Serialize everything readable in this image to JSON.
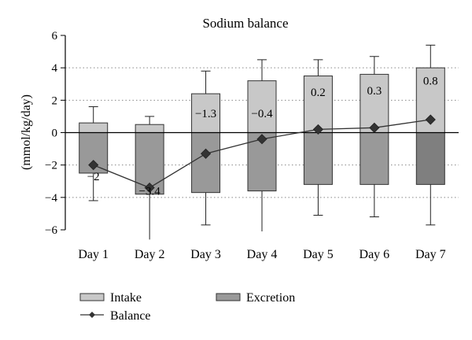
{
  "chart_data": {
    "type": "bar",
    "title": "Sodium balance",
    "xlabel": "",
    "ylabel": "(mmol/kg/day)",
    "ylim": [
      -6,
      6
    ],
    "yticks": [
      -6,
      -4,
      -2,
      0,
      2,
      4,
      6
    ],
    "grid": "dotted horizontal",
    "legend_position": "bottom",
    "categories": [
      "Day 1",
      "Day 2",
      "Day 3",
      "Day 4",
      "Day 5",
      "Day 6",
      "Day 7"
    ],
    "series": [
      {
        "name": "Intake",
        "kind": "bar",
        "color": "#c8c8c8",
        "values": [
          0.6,
          0.5,
          2.4,
          3.2,
          3.5,
          3.6,
          4.0
        ],
        "error_upper": [
          1.6,
          1.0,
          3.8,
          4.5,
          4.5,
          4.7,
          5.4
        ]
      },
      {
        "name": "Excretion",
        "kind": "bar",
        "color": "#999999",
        "values": [
          -2.5,
          -3.8,
          -3.7,
          -3.6,
          -3.2,
          -3.2,
          -3.2
        ],
        "error_lower": [
          -4.2,
          -6.6,
          -5.7,
          -6.1,
          -5.1,
          -5.2,
          -5.7
        ]
      },
      {
        "name": "Balance",
        "kind": "line",
        "color": "#333333",
        "values": [
          -2,
          -3.4,
          -1.3,
          -0.4,
          0.2,
          0.3,
          0.8
        ],
        "labels": [
          "−2",
          "−3.4",
          "−1.3",
          "−0.4",
          "0.2",
          "0.3",
          "0.8"
        ]
      }
    ],
    "excretion_day7_color": "#7f7f7f"
  }
}
